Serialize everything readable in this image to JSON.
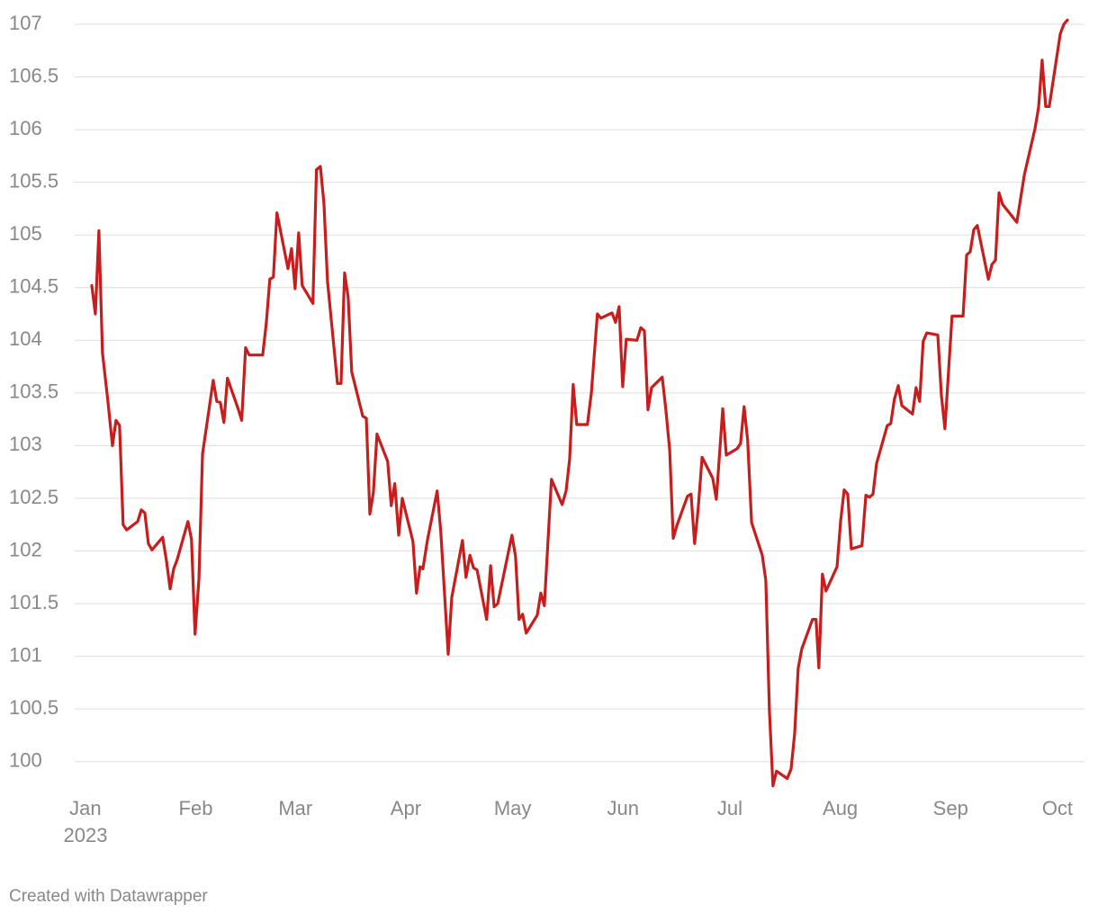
{
  "chart_data": {
    "type": "line",
    "x_axis_year": "2023",
    "footer": "Created with Datawrapper",
    "color": "#c71e1d",
    "grid": true,
    "xlim": [
      -3,
      280.6
    ],
    "ylim": [
      99.75,
      107
    ],
    "xticks": [
      {
        "value": 0,
        "label": "Jan"
      },
      {
        "value": 31,
        "label": "Feb"
      },
      {
        "value": 59,
        "label": "Mar"
      },
      {
        "value": 90,
        "label": "Apr"
      },
      {
        "value": 120,
        "label": "May"
      },
      {
        "value": 151,
        "label": "Jun"
      },
      {
        "value": 181,
        "label": "Jul"
      },
      {
        "value": 212,
        "label": "Aug"
      },
      {
        "value": 243,
        "label": "Sep"
      },
      {
        "value": 273,
        "label": "Oct"
      }
    ],
    "yticks": [
      100,
      100.5,
      101,
      101.5,
      102,
      102.5,
      103,
      103.5,
      104,
      104.5,
      105,
      105.5,
      106,
      106.5,
      107
    ],
    "x": [
      1.8,
      2.8,
      3.8,
      4.8,
      6.3,
      7.6,
      8.6,
      9.6,
      10.6,
      11.6,
      14.7,
      15.7,
      16.7,
      17.7,
      18.7,
      21.7,
      22.8,
      23.8,
      24.8,
      25.8,
      28.8,
      29.8,
      30.8,
      31.9,
      32.9,
      35.9,
      36.9,
      37.9,
      38.9,
      39.9,
      42.9,
      43.9,
      45.0,
      46.0,
      49.8,
      50.8,
      51.8,
      52.8,
      53.8,
      56.9,
      57.9,
      58.9,
      59.9,
      60.9,
      63.9,
      64.9,
      66.0,
      67.0,
      68.0,
      70.8,
      71.8,
      72.8,
      73.8,
      74.8,
      77.9,
      78.9,
      79.9,
      80.9,
      81.9,
      84.9,
      85.9,
      86.9,
      88.0,
      89.0,
      92.0,
      93.0,
      94.0,
      94.8,
      96.1,
      98.8,
      99.8,
      101.9,
      102.9,
      105.9,
      106.9,
      108.0,
      109.0,
      110.0,
      112.7,
      113.8,
      114.8,
      115.8,
      119.8,
      120.8,
      121.8,
      122.8,
      123.8,
      126.9,
      127.9,
      128.9,
      130.9,
      133.9,
      135.0,
      136.0,
      137.0,
      138.0,
      141.0,
      142.1,
      143.8,
      144.8,
      147.9,
      148.9,
      149.9,
      150.9,
      151.9,
      154.9,
      156.0,
      157.0,
      158.0,
      159.0,
      162.0,
      163.0,
      164.1,
      165.1,
      166.1,
      169.1,
      170.1,
      171.1,
      172.1,
      173.2,
      176.2,
      177.2,
      179.0,
      180.0,
      183.0,
      184.0,
      185.0,
      186.0,
      187.1,
      190.1,
      191.1,
      192.1,
      193.1,
      194.1,
      197.1,
      198.2,
      199.2,
      200.2,
      201.2,
      204.2,
      205.2,
      206.0,
      207.0,
      208.0,
      211.1,
      212.1,
      213.1,
      214.1,
      215.1,
      218.1,
      219.2,
      220.2,
      221.2,
      222.2,
      225.2,
      226.2,
      227.2,
      228.3,
      229.3,
      232.3,
      233.3,
      234.3,
      235.3,
      236.3,
      239.4,
      240.4,
      241.4,
      243.4,
      246.5,
      247.5,
      248.5,
      249.5,
      250.5,
      253.6,
      254.6,
      255.6,
      256.6,
      257.6,
      261.6,
      263.7,
      266.7,
      267.7,
      268.7,
      269.7,
      270.7,
      273.8,
      274.8,
      275.8
    ],
    "values": [
      104.52,
      104.25,
      105.04,
      103.88,
      103.43,
      103.0,
      103.24,
      103.19,
      102.25,
      102.2,
      102.28,
      102.39,
      102.36,
      102.07,
      102.01,
      102.13,
      101.9,
      101.64,
      101.83,
      101.92,
      102.28,
      102.11,
      101.21,
      101.74,
      102.92,
      103.62,
      103.42,
      103.41,
      103.22,
      103.64,
      103.35,
      103.24,
      103.93,
      103.86,
      103.86,
      104.16,
      104.58,
      104.6,
      105.21,
      104.68,
      104.87,
      104.49,
      105.02,
      104.52,
      104.35,
      105.62,
      105.65,
      105.3,
      104.56,
      103.59,
      103.59,
      104.64,
      104.41,
      103.7,
      103.28,
      103.26,
      102.35,
      102.56,
      103.11,
      102.85,
      102.43,
      102.64,
      102.15,
      102.5,
      102.09,
      101.6,
      101.85,
      101.83,
      102.11,
      102.57,
      102.19,
      101.02,
      101.56,
      102.1,
      101.75,
      101.96,
      101.84,
      101.82,
      101.35,
      101.86,
      101.47,
      101.5,
      102.15,
      101.95,
      101.35,
      101.4,
      101.22,
      101.39,
      101.6,
      101.48,
      102.68,
      102.44,
      102.57,
      102.87,
      103.58,
      103.2,
      103.2,
      103.5,
      104.25,
      104.21,
      104.26,
      104.17,
      104.32,
      103.56,
      104.01,
      104.0,
      104.12,
      104.09,
      103.34,
      103.55,
      103.65,
      103.35,
      102.96,
      102.12,
      102.24,
      102.52,
      102.54,
      102.07,
      102.4,
      102.89,
      102.69,
      102.49,
      103.35,
      102.91,
      102.97,
      103.02,
      103.37,
      103.05,
      102.27,
      101.96,
      101.72,
      100.49,
      99.77,
      99.91,
      99.84,
      99.93,
      100.27,
      100.89,
      101.07,
      101.35,
      101.35,
      100.89,
      101.78,
      101.62,
      101.85,
      102.28,
      102.58,
      102.54,
      102.02,
      102.05,
      102.53,
      102.51,
      102.54,
      102.83,
      103.19,
      103.21,
      103.44,
      103.57,
      103.38,
      103.3,
      103.55,
      103.42,
      103.99,
      104.07,
      104.05,
      103.48,
      103.16,
      104.23,
      104.23,
      104.81,
      104.84,
      105.05,
      105.09,
      104.58,
      104.72,
      104.76,
      105.4,
      105.29,
      105.12,
      105.57,
      106.01,
      106.21,
      106.66,
      106.22,
      106.22,
      106.91,
      107.0,
      107.04
    ]
  }
}
